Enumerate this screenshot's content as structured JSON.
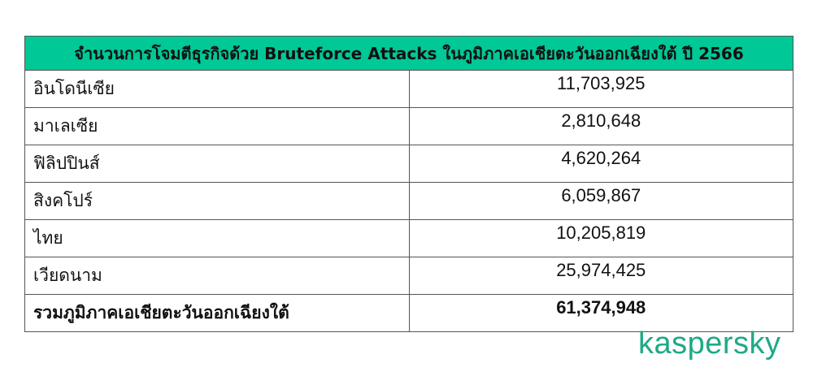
{
  "table": {
    "title": "จำนวนการโจมตีธุรกิจด้วย Bruteforce Attacks ในภูมิภาคเอเชียตะวันออกเฉียงใต้ ปี 2566",
    "rows": [
      {
        "country": "อินโดนีเซีย",
        "value": "11,703,925"
      },
      {
        "country": "มาเลเซีย",
        "value": "2,810,648"
      },
      {
        "country": "ฟิลิปปินส์",
        "value": "4,620,264"
      },
      {
        "country": "สิงคโปร์",
        "value": "6,059,867"
      },
      {
        "country": "ไทย",
        "value": "10,205,819"
      },
      {
        "country": "เวียดนาม",
        "value": "25,974,425"
      }
    ],
    "total": {
      "label": "รวมภูมิภาคเอเชียตะวันออกเฉียงใต้",
      "value": "61,374,948"
    }
  },
  "brand": {
    "logo_text": "kaspersky",
    "color": "#1ea987",
    "header_color": "#00c896"
  }
}
